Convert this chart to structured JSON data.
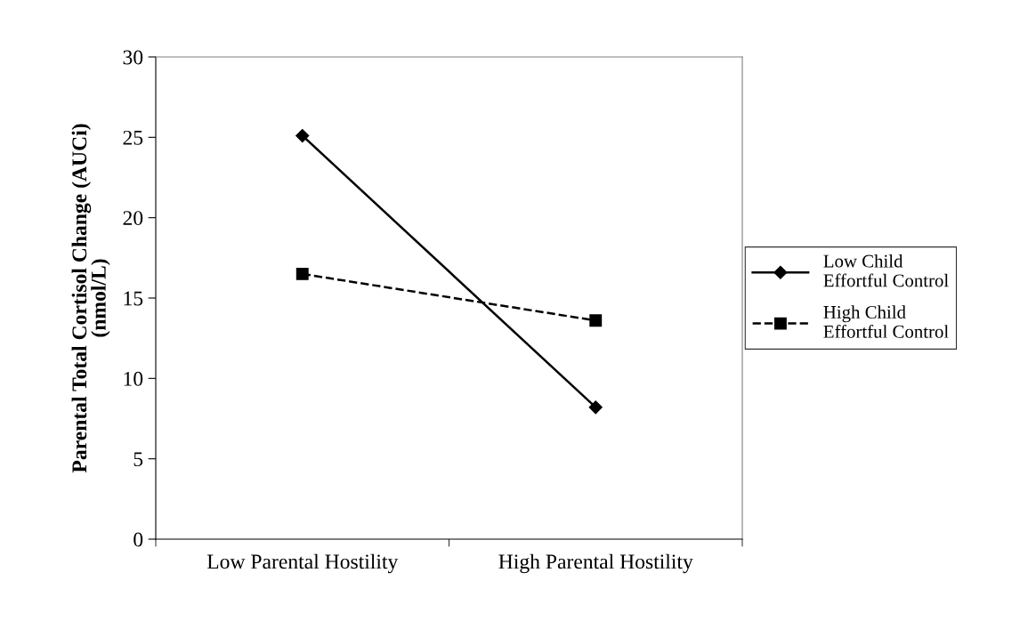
{
  "chart_data": {
    "type": "line",
    "ylabel": "Parental Total Cortisol Change (AUCi)\n(nmol/L)",
    "categories": [
      "Low Parental Hostility",
      "High Parental Hostility"
    ],
    "series": [
      {
        "name": "Low Child\nEffortful Control",
        "color": "#000000",
        "values": [
          25.1,
          8.2
        ],
        "marker": "diamond",
        "line_style": "solid"
      },
      {
        "name": "High Child\nEffortful Control",
        "color": "#000000",
        "values": [
          16.5,
          13.6
        ],
        "marker": "square",
        "line_style": "dashed"
      }
    ],
    "ylim": [
      0,
      30
    ],
    "yticks": [
      0,
      5,
      10,
      15,
      20,
      25,
      30
    ],
    "grid": false,
    "legend": "right"
  }
}
